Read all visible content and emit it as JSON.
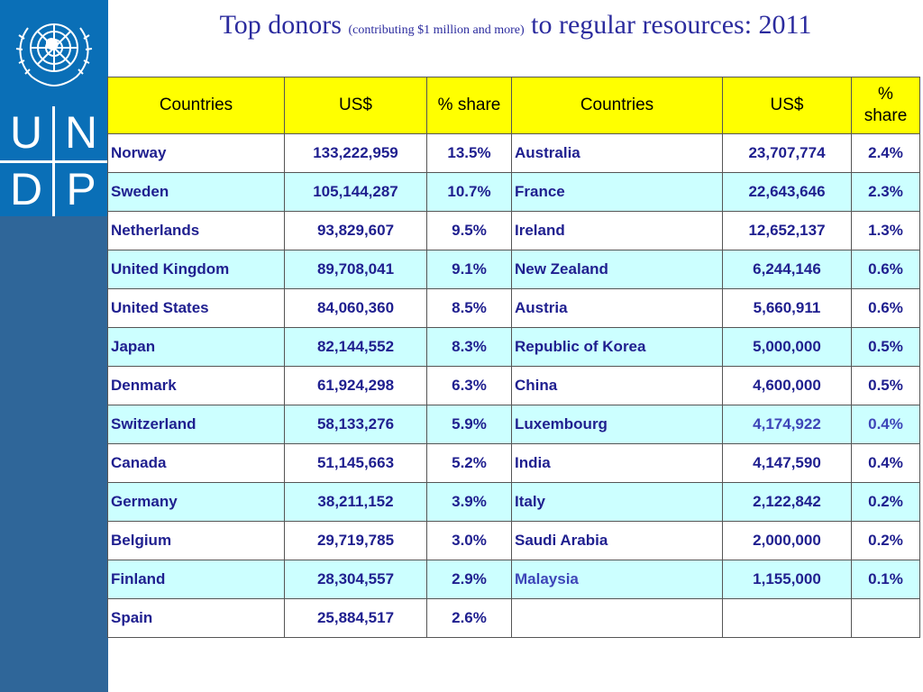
{
  "colors": {
    "sidebar": "#2f6699",
    "logo_block": "#0a6fb7",
    "header_fill": "#ffff00",
    "row_alt": "#ccffff",
    "text": "#1f1f8f",
    "title": "#2b2b9e"
  },
  "logo": {
    "emblem_icon": "un-emblem-icon",
    "letters": [
      "U",
      "N",
      "D",
      "P"
    ]
  },
  "title": {
    "main": "Top donors",
    "sub": "(contributing $1 million and more)",
    "rest": "to regular resources: 2011"
  },
  "table": {
    "headers": [
      "Countries",
      "US$",
      "% share",
      "Countries",
      "US$",
      "% share"
    ],
    "rows": [
      [
        "Norway",
        "133,222,959",
        "13.5%",
        "Australia",
        "23,707,774",
        "2.4%"
      ],
      [
        "Sweden",
        "105,144,287",
        "10.7%",
        "France",
        "22,643,646",
        "2.3%"
      ],
      [
        "Netherlands",
        "93,829,607",
        "9.5%",
        "Ireland",
        "12,652,137",
        "1.3%"
      ],
      [
        "United Kingdom",
        "89,708,041",
        "9.1%",
        "New Zealand",
        "6,244,146",
        "0.6%"
      ],
      [
        "United States",
        "84,060,360",
        "8.5%",
        "Austria",
        "5,660,911",
        "0.6%"
      ],
      [
        "Japan",
        "82,144,552",
        "8.3%",
        "Republic of Korea",
        "5,000,000",
        "0.5%"
      ],
      [
        "Denmark",
        "61,924,298",
        "6.3%",
        "China",
        "4,600,000",
        "0.5%"
      ],
      [
        "Switzerland",
        "58,133,276",
        "5.9%",
        "Luxembourg",
        "4,174,922",
        "0.4%"
      ],
      [
        "Canada",
        "51,145,663",
        "5.2%",
        "India",
        "4,147,590",
        "0.4%"
      ],
      [
        "Germany",
        "38,211,152",
        "3.9%",
        "Italy",
        "2,122,842",
        "0.2%"
      ],
      [
        "Belgium",
        "29,719,785",
        "3.0%",
        "Saudi Arabia",
        "2,000,000",
        "0.2%"
      ],
      [
        "Finland",
        "28,304,557",
        "2.9%",
        "Malaysia",
        "1,155,000",
        "0.1%"
      ],
      [
        "Spain",
        "25,884,517",
        "2.6%",
        "",
        "",
        ""
      ]
    ]
  }
}
